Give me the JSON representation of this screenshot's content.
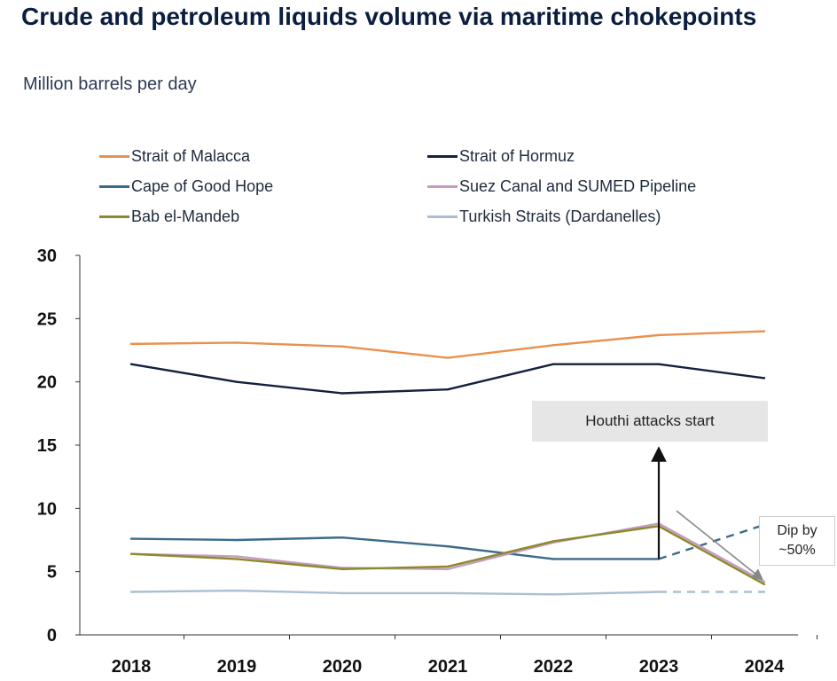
{
  "header": {
    "title": "Crude and petroleum liquids volume via maritime chokepoints",
    "subtitle": "Million barrels per day"
  },
  "annotations": {
    "houthi": "Houthi attacks start",
    "dip_line1": "Dip by",
    "dip_line2": "~50%"
  },
  "chart_data": {
    "type": "line",
    "title": "Crude and petroleum liquids volume via maritime chokepoints",
    "ylabel": "Million barrels per day",
    "x": [
      "2018",
      "2019",
      "2020",
      "2021",
      "2022",
      "2023",
      "2024"
    ],
    "ylim": [
      0,
      30
    ],
    "yticks": [
      0,
      5,
      10,
      15,
      20,
      25,
      30
    ],
    "grid": false,
    "legend_position": "top",
    "series": [
      {
        "name": "Strait of Malacca",
        "color": "#e8914f",
        "values": [
          23.0,
          23.1,
          22.8,
          21.9,
          22.9,
          23.7,
          24.0
        ]
      },
      {
        "name": "Strait of Hormuz",
        "color": "#14213d",
        "values": [
          21.4,
          20.0,
          19.1,
          19.4,
          21.4,
          21.4,
          20.3
        ]
      },
      {
        "name": "Cape of Good Hope",
        "color": "#3b6a8a",
        "values": [
          7.6,
          7.5,
          7.7,
          7.0,
          6.0,
          6.0,
          8.7
        ],
        "dashed_from_index": 5
      },
      {
        "name": "Suez Canal and SUMED Pipeline",
        "color": "#c69bc0",
        "values": [
          6.4,
          6.2,
          5.3,
          5.2,
          7.3,
          8.8,
          4.2
        ]
      },
      {
        "name": "Bab el-Mandeb",
        "color": "#8a8a2a",
        "values": [
          6.4,
          6.0,
          5.2,
          5.4,
          7.4,
          8.6,
          4.0
        ]
      },
      {
        "name": "Turkish Straits (Dardanelles)",
        "color": "#a9bfd3",
        "values": [
          3.4,
          3.5,
          3.3,
          3.3,
          3.2,
          3.4,
          3.4
        ],
        "dashed_from_index": 5
      }
    ]
  }
}
